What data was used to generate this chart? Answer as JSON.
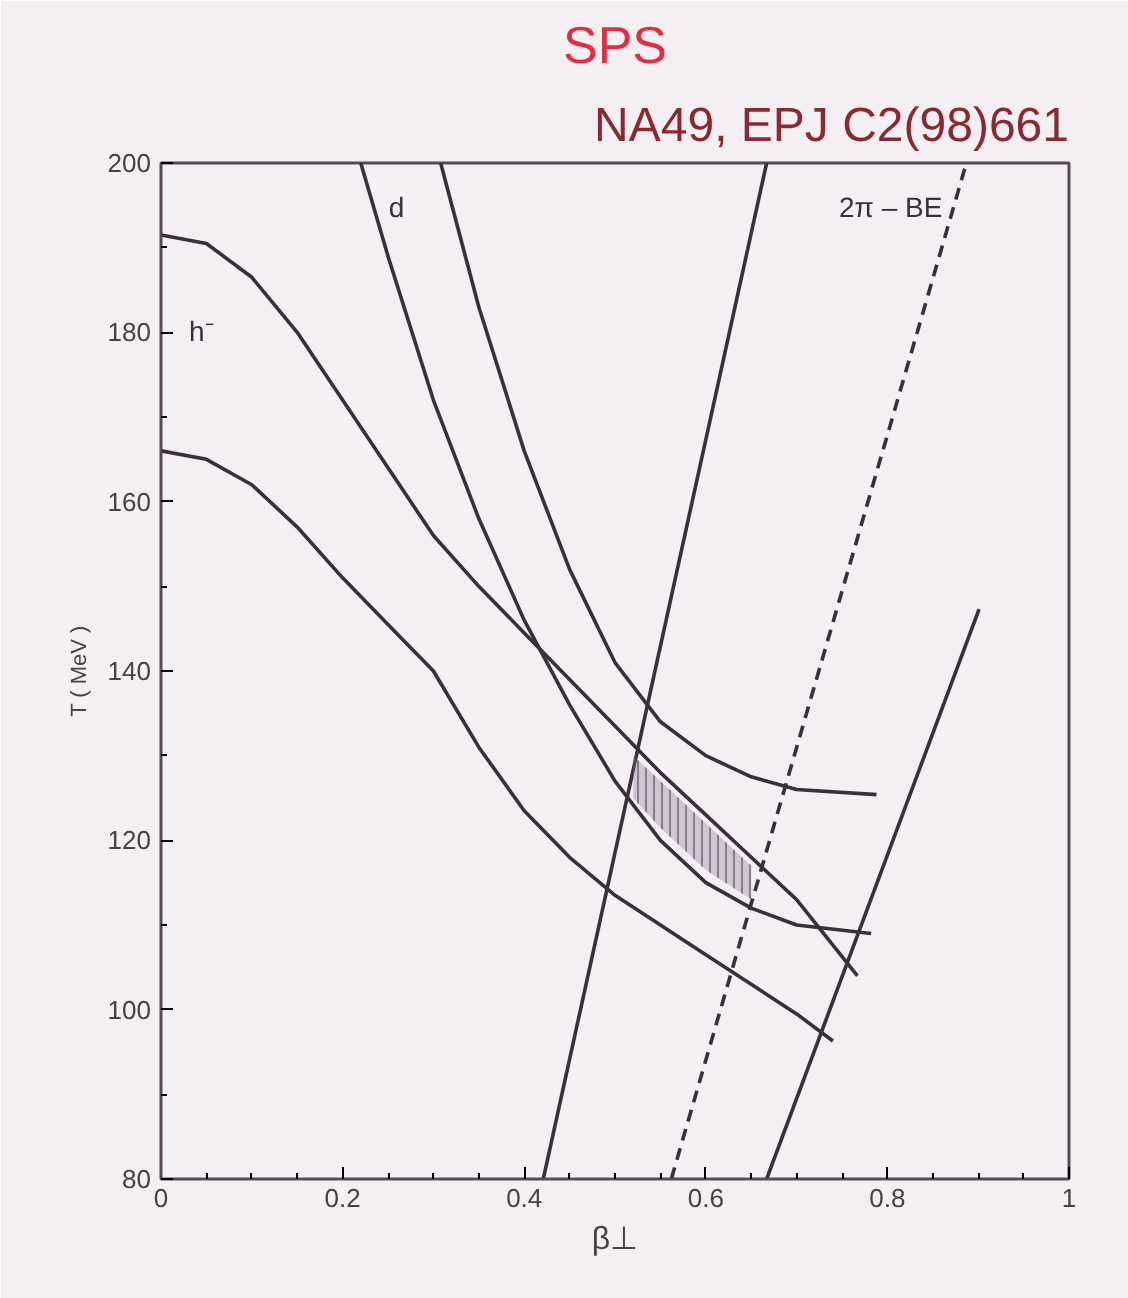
{
  "chart_data": {
    "type": "line",
    "title": "SPS",
    "subtitle": "NA49, EPJ C2(98)661",
    "xlabel": "β⊥",
    "ylabel": "T ( MeV )",
    "xlim": [
      0,
      1
    ],
    "ylim": [
      80,
      200
    ],
    "xticks": [
      0,
      0.2,
      0.4,
      0.6,
      0.8,
      1
    ],
    "yticks": [
      80,
      100,
      120,
      140,
      160,
      180,
      200
    ],
    "grid": false,
    "line_style": "solid",
    "marker": "none",
    "series": [
      {
        "name": "h⁻",
        "color": "#3a3038",
        "x": [
          0,
          0.05,
          0.1,
          0.15,
          0.2,
          0.25,
          0.3,
          0.35,
          0.4,
          0.45,
          0.5,
          0.55,
          0.6,
          0.65,
          0.7,
          0.767
        ],
        "values": [
          191.5,
          190.5,
          186.5,
          180,
          172,
          164,
          156,
          150,
          144.5,
          139,
          133.5,
          128,
          123,
          118,
          113,
          104
        ]
      },
      {
        "color": "#3a3038",
        "x": [
          0,
          0.05,
          0.1,
          0.15,
          0.2,
          0.25,
          0.3,
          0.35,
          0.4,
          0.45,
          0.5,
          0.55,
          0.6,
          0.65,
          0.7,
          0.74
        ],
        "values": [
          166,
          165,
          162,
          157,
          151,
          145.5,
          140,
          131,
          123.5,
          118,
          113.5,
          110,
          106.5,
          103,
          99.5,
          96.3
        ]
      },
      {
        "name": "d",
        "color": "#3a3038",
        "x": [
          0.22,
          0.25,
          0.3,
          0.35,
          0.4,
          0.45,
          0.5,
          0.55,
          0.6,
          0.65,
          0.7,
          0.782
        ],
        "values": [
          200,
          189,
          172,
          158,
          146,
          136,
          127,
          120,
          115,
          112,
          110,
          109
        ]
      },
      {
        "color": "#3a3038",
        "x": [
          0.308,
          0.35,
          0.4,
          0.45,
          0.5,
          0.55,
          0.6,
          0.65,
          0.7,
          0.788
        ],
        "values": [
          200,
          183,
          166,
          152,
          141,
          134,
          130,
          127.5,
          126,
          125.4
        ]
      },
      {
        "color": "#3a3038",
        "x": [
          0.421,
          0.667
        ],
        "values": [
          80,
          200
        ]
      },
      {
        "name": "2π – BE",
        "color": "#3a3038",
        "line_style": "dashed",
        "x": [
          0.562,
          0.887
        ],
        "values": [
          80,
          200
        ]
      },
      {
        "color": "#3a3038",
        "x": [
          0.667,
          0.901
        ],
        "values": [
          80,
          147.3
        ]
      },
      {
        "color": "#8a7a90",
        "x": [
          0.52,
          0.55,
          0.6,
          0.65
        ],
        "values": [
          null,
          null,
          null,
          null
        ],
        "upper": [
          130,
          127,
          122,
          117
        ],
        "lower": [
          125,
          121.5,
          116.5,
          113
        ]
      }
    ]
  }
}
